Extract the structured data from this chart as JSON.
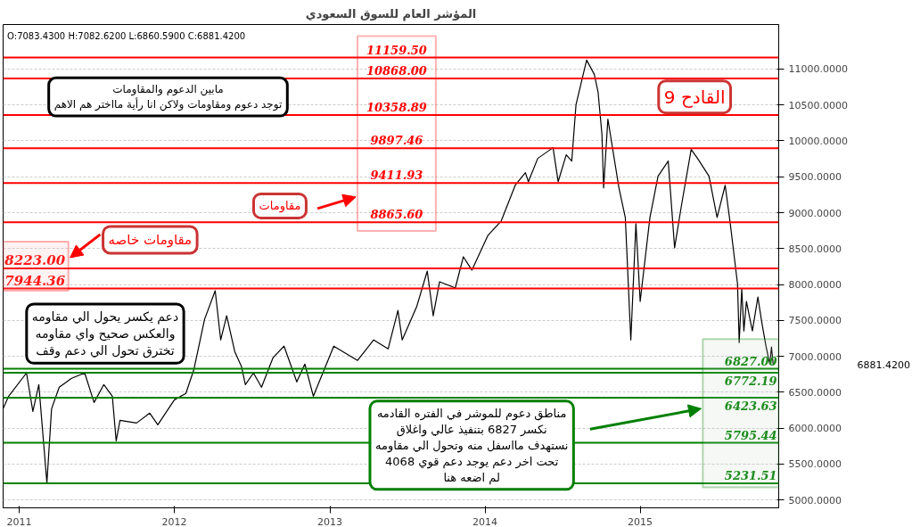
{
  "chart_data": {
    "type": "line",
    "title": "المؤشر العام للسوق السعودي",
    "x": [
      "2010-11-24",
      "2010-12-07",
      "2011-01-18",
      "2011-02-02",
      "2011-02-16",
      "2011-03-07",
      "2011-03-18",
      "2011-04-05",
      "2011-05-04",
      "2011-06-04",
      "2011-06-26",
      "2011-07-19",
      "2011-08-08",
      "2011-08-17",
      "2011-08-26",
      "2011-10-04",
      "2011-11-04",
      "2011-11-23",
      "2012-01-01",
      "2012-01-28",
      "2012-02-16",
      "2012-03-12",
      "2012-04-06",
      "2012-04-19",
      "2012-05-03",
      "2012-05-22",
      "2012-06-07",
      "2012-06-16",
      "2012-07-05",
      "2012-07-24",
      "2012-08-20",
      "2012-09-15",
      "2012-10-15",
      "2012-11-03",
      "2012-11-23",
      "2013-01-10",
      "2013-03-07",
      "2013-04-14",
      "2013-05-18",
      "2013-06-10",
      "2013-06-20",
      "2013-07-24",
      "2013-08-18",
      "2013-09-01",
      "2013-09-16",
      "2013-10-23",
      "2013-11-11",
      "2013-12-01",
      "2014-01-08",
      "2014-02-08",
      "2014-03-13",
      "2014-04-06",
      "2014-04-13",
      "2014-05-05",
      "2014-06-10",
      "2014-06-22",
      "2014-07-11",
      "2014-07-24",
      "2014-08-03",
      "2014-08-28",
      "2014-09-15",
      "2014-09-24",
      "2014-10-03",
      "2014-10-07",
      "2014-10-17",
      "2014-11-12",
      "2014-11-27",
      "2014-12-10",
      "2014-12-22",
      "2015-01-01",
      "2015-01-24",
      "2015-02-12",
      "2015-03-08",
      "2015-03-23",
      "2015-04-08",
      "2015-05-01",
      "2015-05-16",
      "2015-06-12",
      "2015-07-01",
      "2015-07-20",
      "2015-08-01",
      "2015-08-18",
      "2015-08-22",
      "2015-08-28",
      "2015-09-02",
      "2015-09-08",
      "2015-09-22",
      "2015-10-05",
      "2015-10-14",
      "2015-10-24",
      "2015-11-02",
      "2015-11-06",
      "2015-11-10"
    ],
    "series": [
      {
        "color": "#000000",
        "values": [
          6270,
          6444,
          6768,
          6233,
          6606,
          5237,
          6270,
          6569,
          6693,
          6768,
          6357,
          6606,
          6444,
          5822,
          6108,
          6071,
          6208,
          6046,
          6394,
          6482,
          6818,
          7515,
          7913,
          7228,
          7565,
          7067,
          6855,
          6606,
          6768,
          6569,
          6980,
          7141,
          6643,
          6892,
          6444,
          7141,
          6942,
          7228,
          7104,
          7639,
          7228,
          7689,
          8187,
          7565,
          8038,
          7951,
          8386,
          8200,
          8685,
          8884,
          9382,
          9557,
          9432,
          9756,
          9905,
          9432,
          9806,
          9719,
          10503,
          11125,
          10926,
          10677,
          10092,
          9345,
          10304,
          9345,
          8934,
          7228,
          8847,
          7764,
          8934,
          9507,
          9719,
          8511,
          9096,
          9881,
          9756,
          9507,
          8934,
          9382,
          8847,
          8013,
          7191,
          7938,
          7353,
          7764,
          7353,
          7826,
          7478,
          7141,
          6892,
          7129,
          6881.42
        ]
      }
    ],
    "xlim": [
      "2010-11-24",
      "2015-11-23"
    ],
    "xticks": [
      {
        "value": "2011-01-01",
        "label": "2011"
      },
      {
        "value": "2012-01-01",
        "label": "2012"
      },
      {
        "value": "2013-01-01",
        "label": "2013"
      },
      {
        "value": "2014-01-01",
        "label": "2014"
      },
      {
        "value": "2015-01-01",
        "label": "2015"
      }
    ],
    "ylim": [
      4890,
      11620
    ],
    "yticks": [
      {
        "value": 5000,
        "label": "5000.0000"
      },
      {
        "value": 5500,
        "label": "5500.0000"
      },
      {
        "value": 6000,
        "label": "6000.0000"
      },
      {
        "value": 6500,
        "label": "6500.0000"
      },
      {
        "value": 7000,
        "label": "7000.0000"
      },
      {
        "value": 7500,
        "label": "7500.0000"
      },
      {
        "value": 8000,
        "label": "8000.0000"
      },
      {
        "value": 8500,
        "label": "8500.0000"
      },
      {
        "value": 9000,
        "label": "9000.0000"
      },
      {
        "value": 9500,
        "label": "9500.0000"
      },
      {
        "value": 10000,
        "label": "10000.0000"
      },
      {
        "value": 10500,
        "label": "10500.0000"
      },
      {
        "value": 11000,
        "label": "11000.0000"
      }
    ],
    "grid": "y",
    "ref_lines": [
      {
        "axis": "y",
        "value": 11159.5,
        "label": "11159.50",
        "color": "#ff0000"
      },
      {
        "axis": "y",
        "value": 10868.0,
        "label": "10868.00",
        "color": "#ff0000"
      },
      {
        "axis": "y",
        "value": 10358.89,
        "label": "10358.89",
        "color": "#ff0000"
      },
      {
        "axis": "y",
        "value": 9897.46,
        "label": "9897.46",
        "color": "#ff0000"
      },
      {
        "axis": "y",
        "value": 9411.93,
        "label": "9411.93",
        "color": "#ff0000"
      },
      {
        "axis": "y",
        "value": 8865.6,
        "label": "8865.60",
        "color": "#ff0000"
      },
      {
        "axis": "y",
        "value": 8223.0,
        "label": "8223.00",
        "color": "#ff0000"
      },
      {
        "axis": "y",
        "value": 7944.36,
        "label": "7944.36",
        "color": "#ff0000"
      },
      {
        "axis": "y",
        "value": 6827.0,
        "label": "6827.00",
        "color": "#008000"
      },
      {
        "axis": "y",
        "value": 6772.19,
        "label": "6772.19",
        "color": "#008000"
      },
      {
        "axis": "y",
        "value": 6423.63,
        "label": "6423.63",
        "color": "#008000"
      },
      {
        "axis": "y",
        "value": 5795.44,
        "label": "5795.44",
        "color": "#008000"
      },
      {
        "axis": "y",
        "value": 5231.51,
        "label": "5231.51",
        "color": "#008000"
      }
    ],
    "annotations": [
      "O:7083.4300  H:7082.6200  L:6860.5900  C:6881.4200",
      "مابين الدعوم والمقاومات\nتوجد دعوم ومقاومات ولاكن انا رأية مااختر هم الاهم",
      "دعم يكسر يحول الي مقاومه\nوالعكس صحيح واي مقاومه\nتخترق تحول الي دعم وقف",
      "مقاومات خاصه",
      "مقاومات",
      "القادح 9",
      "مناطق دعوم للموشر في الفتره القادمه\nنكسر 6827 بتنفيذ عالي واغلاق\nنستهدف مااسفل منه وتحول الي مقاومه\nتحت اخر دعم يوجد دعم قوي 4068\nلم اضعه هنا",
      "6881.4200"
    ]
  }
}
